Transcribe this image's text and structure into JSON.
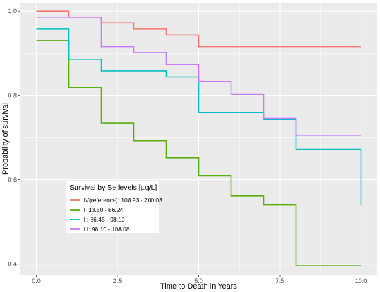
{
  "chart_data": {
    "type": "line",
    "step": true,
    "title": "",
    "xlabel": "Time to Death in Years",
    "ylabel": "Probability of survival",
    "xlim": [
      -0.5,
      10.5
    ],
    "ylim": [
      0.375,
      1.02
    ],
    "x_ticks": [
      0,
      2.5,
      5,
      7.5,
      10
    ],
    "x_tick_labels": [
      "0.0",
      "2.5",
      "5.0",
      "7.5",
      "10.0"
    ],
    "y_ticks": [
      0.4,
      0.6,
      0.8,
      1.0
    ],
    "y_tick_labels": [
      "0.4",
      "0.6",
      "0.8",
      "1.0"
    ],
    "grid": true,
    "background": "#ebebeb",
    "legend": {
      "title": "Survival by Se levels [µg/L]",
      "placement": "bottom-left"
    },
    "series": [
      {
        "name": "IV(reference): 108.93 - 200.03",
        "color": "#f8766d",
        "x": [
          0,
          1,
          2,
          3,
          4,
          5,
          10
        ],
        "y": [
          1.0,
          0.986,
          0.972,
          0.958,
          0.944,
          0.916,
          0.916
        ]
      },
      {
        "name": "I: 13.50 - 86.24",
        "color": "#5aae0c",
        "x": [
          0,
          1,
          2,
          3,
          4,
          5,
          6,
          7,
          8,
          10
        ],
        "y": [
          0.93,
          0.819,
          0.735,
          0.693,
          0.652,
          0.61,
          0.562,
          0.541,
          0.396,
          0.396
        ]
      },
      {
        "name": "II: 86.45 - 98.10",
        "color": "#00bfc4",
        "x": [
          0,
          1,
          2,
          4,
          5,
          7,
          8,
          10
        ],
        "y": [
          0.958,
          0.886,
          0.858,
          0.844,
          0.76,
          0.743,
          0.672,
          0.54
        ]
      },
      {
        "name": "III: 98.10 - 108.08",
        "color": "#c77cff",
        "x": [
          0,
          2,
          3,
          4,
          5,
          6,
          7,
          8,
          10
        ],
        "y": [
          0.986,
          0.916,
          0.902,
          0.874,
          0.833,
          0.803,
          0.746,
          0.706,
          0.706
        ]
      }
    ]
  }
}
